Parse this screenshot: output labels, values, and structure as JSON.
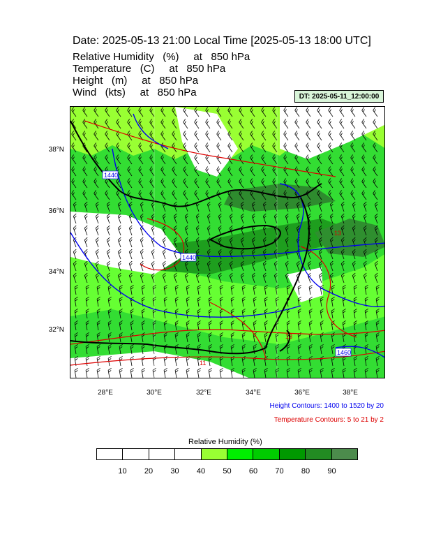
{
  "title": "Date: 2025-05-13  21:00 Local Time [2025-05-13  18:00 UTC]",
  "variables": [
    "Relative Humidity   (%)     at   850 hPa",
    "Temperature   (C)     at   850 hPa",
    "Height   (m)     at   850 hPa",
    "Wind   (kts)     at   850 hPa"
  ],
  "dt_label": "DT: 2025-05-11_12:00:00",
  "map": {
    "lat_labels": [
      "38°N",
      "36°N",
      "34°N",
      "32°N"
    ],
    "lon_labels": [
      "28°E",
      "30°E",
      "32°E",
      "34°E",
      "36°E",
      "38°E"
    ],
    "contour_labels": {
      "height": [
        "1440",
        "1440",
        "1460"
      ],
      "temperature": [
        "13",
        "11",
        "13"
      ]
    }
  },
  "height_contours_note": "Height Contours: 1400 to 1520 by 20",
  "temperature_contours_note": "Temperature Contours: 5 to 21 by 2",
  "legend": {
    "title": "Relative Humidity  (%)",
    "ticks": [
      "10",
      "20",
      "30",
      "40",
      "50",
      "60",
      "70",
      "80",
      "90"
    ],
    "colors": [
      "#ffffff",
      "#ffffff",
      "#ffffff",
      "#ffffff",
      "#99ff33",
      "#00ee00",
      "#00cc00",
      "#009900",
      "#228b22",
      "#4c8b4c"
    ]
  },
  "colors": {
    "height_contour": "#0000ee",
    "temperature_contour": "#dd0000",
    "coast": "#000000"
  }
}
